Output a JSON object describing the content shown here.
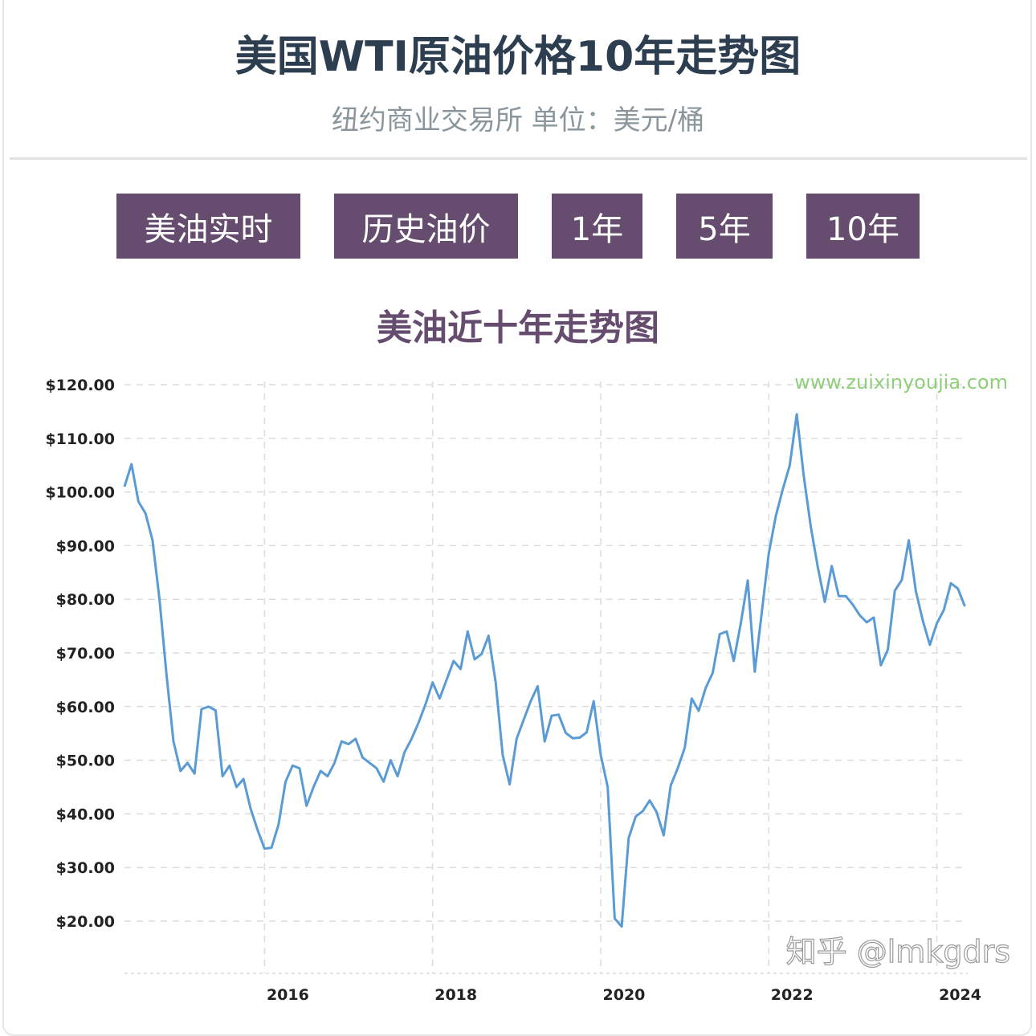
{
  "header": {
    "title": "美国WTI原油价格10年走势图",
    "subtitle": "纽约商业交易所 单位：美元/桶"
  },
  "buttons": [
    {
      "label": "美油实时"
    },
    {
      "label": "历史油价"
    },
    {
      "label": "1年"
    },
    {
      "label": "5年"
    },
    {
      "label": "10年"
    }
  ],
  "colors": {
    "title": "#2c3e50",
    "button": "#664c6e",
    "line": "#5b9bd5",
    "watermark": "#8fcf7a"
  },
  "watermarks": {
    "site": "www.zuixinyoujia.com",
    "zhihu": "知乎 @lmkgdrs"
  },
  "chart_data": {
    "type": "line",
    "title": "美油近十年走势图",
    "ylim": [
      10,
      120
    ],
    "yticks": [
      "$120.00",
      "$110.00",
      "$100.00",
      "$90.00",
      "$80.00",
      "$70.00",
      "$60.00",
      "$50.00",
      "$40.00",
      "$30.00",
      "$20.00"
    ],
    "ytick_values": [
      120,
      110,
      100,
      90,
      80,
      70,
      60,
      50,
      40,
      30,
      20
    ],
    "xticks": [
      "2016",
      "2018",
      "2020",
      "2022",
      "2024"
    ],
    "grid": true,
    "x": [
      "2014-05",
      "2014-06",
      "2014-07",
      "2014-08",
      "2014-09",
      "2014-10",
      "2014-11",
      "2014-12",
      "2015-01",
      "2015-02",
      "2015-03",
      "2015-04",
      "2015-05",
      "2015-06",
      "2015-07",
      "2015-08",
      "2015-09",
      "2015-10",
      "2015-11",
      "2015-12",
      "2016-01",
      "2016-02",
      "2016-03",
      "2016-04",
      "2016-05",
      "2016-06",
      "2016-07",
      "2016-08",
      "2016-09",
      "2016-10",
      "2016-11",
      "2016-12",
      "2017-01",
      "2017-02",
      "2017-03",
      "2017-04",
      "2017-05",
      "2017-06",
      "2017-07",
      "2017-08",
      "2017-09",
      "2017-10",
      "2017-11",
      "2017-12",
      "2018-01",
      "2018-02",
      "2018-03",
      "2018-04",
      "2018-05",
      "2018-06",
      "2018-07",
      "2018-08",
      "2018-09",
      "2018-10",
      "2018-11",
      "2018-12",
      "2019-01",
      "2019-02",
      "2019-03",
      "2019-04",
      "2019-05",
      "2019-06",
      "2019-07",
      "2019-08",
      "2019-09",
      "2019-10",
      "2019-11",
      "2019-12",
      "2020-01",
      "2020-02",
      "2020-03",
      "2020-04",
      "2020-05",
      "2020-06",
      "2020-07",
      "2020-08",
      "2020-09",
      "2020-10",
      "2020-11",
      "2020-12",
      "2021-01",
      "2021-02",
      "2021-03",
      "2021-04",
      "2021-05",
      "2021-06",
      "2021-07",
      "2021-08",
      "2021-09",
      "2021-10",
      "2021-11",
      "2021-12",
      "2022-01",
      "2022-02",
      "2022-03",
      "2022-04",
      "2022-05",
      "2022-06",
      "2022-07",
      "2022-08",
      "2022-09",
      "2022-10",
      "2022-11",
      "2022-12",
      "2023-01",
      "2023-02",
      "2023-03",
      "2023-04",
      "2023-05",
      "2023-06",
      "2023-07",
      "2023-08",
      "2023-09",
      "2023-10",
      "2023-11",
      "2023-12",
      "2024-01",
      "2024-02",
      "2024-03",
      "2024-04",
      "2024-05"
    ],
    "values": [
      101,
      105.2,
      98.2,
      96,
      91,
      80,
      66,
      53.5,
      48,
      49.5,
      47.5,
      59.5,
      60,
      59.3,
      47,
      49,
      45,
      46.5,
      41,
      37,
      33.5,
      33.7,
      38,
      46,
      49,
      48.5,
      41.5,
      45,
      48,
      47,
      49.5,
      53.5,
      53,
      54,
      50.5,
      49.5,
      48.5,
      46,
      50,
      47,
      51.5,
      54,
      57,
      60.5,
      64.5,
      61.5,
      65,
      68.5,
      67,
      74,
      68.8,
      69.8,
      73.2,
      64.5,
      51,
      45.5,
      54,
      57.5,
      61,
      63.8,
      53.5,
      58.3,
      58.5,
      55.1,
      54.1,
      54.2,
      55.2,
      61,
      51,
      45,
      20.5,
      19,
      35.5,
      39.5,
      40.5,
      42.5,
      40.3,
      36,
      45.3,
      48.5,
      52.3,
      61.5,
      59.2,
      63.5,
      66.3,
      73.5,
      74,
      68.5,
      75.5,
      83.5,
      66.5,
      77.5,
      88.5,
      95.5,
      100.5,
      105,
      114.5,
      103,
      93.5,
      86,
      79.5,
      86.2,
      80.6,
      80.6,
      79,
      77,
      75.7,
      76.6,
      67.7,
      70.6,
      81.6,
      83.6,
      91,
      81.5,
      76,
      71.5,
      75.5,
      78,
      83,
      82,
      78.7
    ]
  }
}
